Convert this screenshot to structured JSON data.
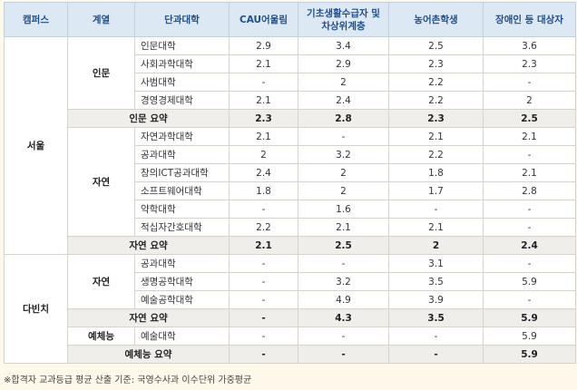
{
  "headers": [
    "캠퍼스",
    "계열",
    "단과대학",
    "CAU어울림",
    "기초생활수급자 및 차상위계층",
    "농어촌학생",
    "장애인 등 대상자"
  ],
  "campuses": {
    "seoul": "서울",
    "davinci": "다빈치"
  },
  "groups": {
    "humanities": "인문",
    "nature": "자연",
    "nature2": "자연",
    "arts": "예체능"
  },
  "rows": [
    {
      "college": "인문대학",
      "v": [
        "2.9",
        "3.4",
        "2.5",
        "3.6"
      ]
    },
    {
      "college": "사회과학대학",
      "v": [
        "2.1",
        "2.9",
        "2.3",
        "2.3"
      ]
    },
    {
      "college": "사범대학",
      "v": [
        "-",
        "2",
        "2.2",
        "-"
      ]
    },
    {
      "college": "경영경제대학",
      "v": [
        "2.1",
        "2.4",
        "2.2",
        "2"
      ]
    },
    {
      "college": "인문 요약",
      "v": [
        "2.3",
        "2.8",
        "2.3",
        "2.5"
      ]
    },
    {
      "college": "자연과학대학",
      "v": [
        "2.1",
        "-",
        "2.1",
        "2.1"
      ]
    },
    {
      "college": "공과대학",
      "v": [
        "2",
        "3.2",
        "2.2",
        "-"
      ]
    },
    {
      "college": "창의ICT공과대학",
      "v": [
        "2.4",
        "2",
        "1.8",
        "2.1"
      ]
    },
    {
      "college": "소프트웨어대학",
      "v": [
        "1.8",
        "2",
        "1.7",
        "2.8"
      ]
    },
    {
      "college": "약학대학",
      "v": [
        "-",
        "1.6",
        "-",
        "-"
      ]
    },
    {
      "college": "적십자간호대학",
      "v": [
        "2.2",
        "2.1",
        "2.1",
        "-"
      ]
    },
    {
      "college": "자연 요약",
      "v": [
        "2.1",
        "2.5",
        "2",
        "2.4"
      ]
    },
    {
      "college": "공과대학",
      "v": [
        "-",
        "-",
        "3.1",
        "-"
      ]
    },
    {
      "college": "생명공학대학",
      "v": [
        "-",
        "3.2",
        "3.5",
        "5.9"
      ]
    },
    {
      "college": "예술공학대학",
      "v": [
        "-",
        "4.9",
        "3.9",
        "-"
      ]
    },
    {
      "college": "자연 요약",
      "v": [
        "-",
        "4.3",
        "3.5",
        "5.9"
      ]
    },
    {
      "college": "예술대학",
      "v": [
        "-",
        "-",
        "-",
        "5.9"
      ]
    },
    {
      "college": "예체능 요약",
      "v": [
        "-",
        "-",
        "-",
        "5.9"
      ]
    }
  ],
  "footnote": "※합격자 교과등급 평균 산출 기준: 국영수사과 이수단위 가중평균"
}
